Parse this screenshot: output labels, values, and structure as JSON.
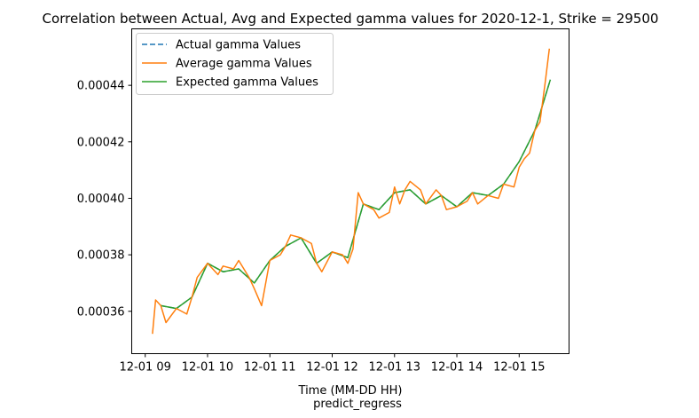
{
  "chart_data": {
    "type": "line",
    "title": "Correlation between Actual, Avg and Expected gamma values for 2020-12-1, Strike = 29500",
    "xlabel": "Time (MM-DD HH)",
    "footer": "predict_regress",
    "ylabel": "",
    "xlim": [
      "2020-12-01 08:47",
      "2020-12-01 15:48"
    ],
    "ylim": [
      0.000345,
      0.00046
    ],
    "x_ticks": [
      "12-01 09",
      "12-01 10",
      "12-01 11",
      "12-01 12",
      "12-01 13",
      "12-01 14",
      "12-01 15"
    ],
    "x_tick_hours": [
      9,
      10,
      11,
      12,
      13,
      14,
      15
    ],
    "y_ticks": [
      "0.00036",
      "0.00038",
      "0.00040",
      "0.00042",
      "0.00044"
    ],
    "y_tick_values": [
      0.00036,
      0.00038,
      0.0004,
      0.00042,
      0.00044
    ],
    "grid": false,
    "legend_position": "top-left",
    "series": [
      {
        "name": "Actual gamma Values",
        "color": "#1f77b4",
        "dash": "dashed",
        "x": [
          "09:15",
          "09:30",
          "09:45",
          "10:00",
          "10:15",
          "10:30",
          "10:45",
          "11:00",
          "11:15",
          "11:30",
          "11:45",
          "12:00",
          "12:15",
          "12:30",
          "12:45",
          "13:00",
          "13:15",
          "13:30",
          "13:45",
          "14:00",
          "14:15",
          "14:30",
          "14:45",
          "15:00",
          "15:15",
          "15:30"
        ],
        "values": [
          0.000362,
          0.000361,
          0.000365,
          0.000377,
          0.000374,
          0.000375,
          0.00037,
          0.000378,
          0.000383,
          0.000386,
          0.000377,
          0.000381,
          0.000379,
          0.000398,
          0.000396,
          0.000402,
          0.000403,
          0.000398,
          0.000401,
          0.000397,
          0.000402,
          0.000401,
          0.000405,
          0.000413,
          0.000424,
          0.000442
        ]
      },
      {
        "name": "Average gamma Values",
        "color": "#ff7f0e",
        "dash": "solid",
        "x": [
          "09:07",
          "09:10",
          "09:15",
          "09:20",
          "09:30",
          "09:40",
          "09:45",
          "09:50",
          "10:00",
          "10:10",
          "10:15",
          "10:25",
          "10:30",
          "10:40",
          "10:45",
          "10:52",
          "11:00",
          "11:10",
          "11:15",
          "11:20",
          "11:30",
          "11:40",
          "11:45",
          "11:50",
          "12:00",
          "12:10",
          "12:15",
          "12:20",
          "12:25",
          "12:30",
          "12:40",
          "12:45",
          "12:55",
          "13:00",
          "13:05",
          "13:10",
          "13:15",
          "13:25",
          "13:30",
          "13:40",
          "13:45",
          "13:50",
          "14:00",
          "14:10",
          "14:15",
          "14:20",
          "14:30",
          "14:40",
          "14:45",
          "14:55",
          "15:00",
          "15:05",
          "15:10",
          "15:15",
          "15:20",
          "15:25",
          "15:29"
        ],
        "values": [
          0.000352,
          0.000364,
          0.000362,
          0.000356,
          0.000361,
          0.000359,
          0.000365,
          0.000372,
          0.000377,
          0.000373,
          0.000376,
          0.000375,
          0.000378,
          0.000372,
          0.000368,
          0.000362,
          0.000378,
          0.00038,
          0.000383,
          0.000387,
          0.000386,
          0.000384,
          0.000377,
          0.000374,
          0.000381,
          0.00038,
          0.000377,
          0.000382,
          0.000402,
          0.000398,
          0.000396,
          0.000393,
          0.000395,
          0.000404,
          0.000398,
          0.000403,
          0.000406,
          0.000403,
          0.000398,
          0.000403,
          0.000401,
          0.000396,
          0.000397,
          0.000399,
          0.000402,
          0.000398,
          0.000401,
          0.0004,
          0.000405,
          0.000404,
          0.000411,
          0.000414,
          0.000416,
          0.000424,
          0.000427,
          0.000441,
          0.000453
        ]
      },
      {
        "name": "Expected gamma Values",
        "color": "#2ca02c",
        "dash": "solid",
        "x": [
          "09:15",
          "09:30",
          "09:45",
          "10:00",
          "10:15",
          "10:30",
          "10:45",
          "11:00",
          "11:15",
          "11:30",
          "11:45",
          "12:00",
          "12:15",
          "12:30",
          "12:45",
          "13:00",
          "13:15",
          "13:30",
          "13:45",
          "14:00",
          "14:15",
          "14:30",
          "14:45",
          "15:00",
          "15:15",
          "15:30"
        ],
        "values": [
          0.000362,
          0.000361,
          0.000365,
          0.000377,
          0.000374,
          0.000375,
          0.00037,
          0.000378,
          0.000383,
          0.000386,
          0.000377,
          0.000381,
          0.000379,
          0.000398,
          0.000396,
          0.000402,
          0.000403,
          0.000398,
          0.000401,
          0.000397,
          0.000402,
          0.000401,
          0.000405,
          0.000413,
          0.000424,
          0.000442
        ]
      }
    ]
  }
}
